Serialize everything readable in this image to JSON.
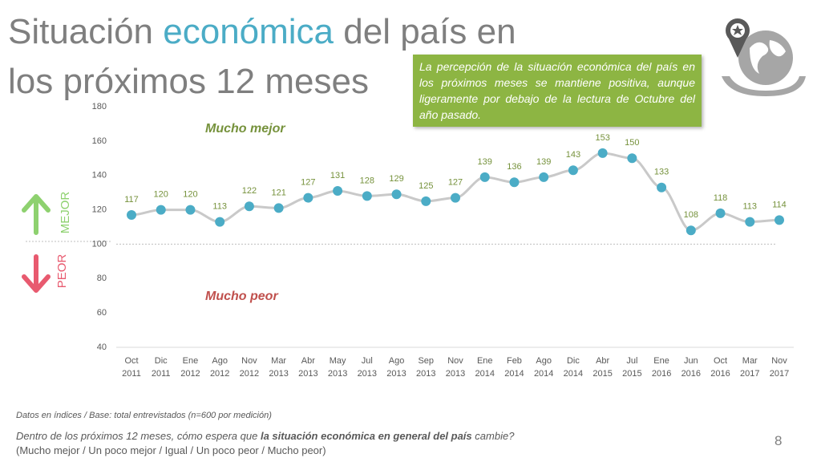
{
  "title": {
    "line1": [
      "Situación",
      "económica",
      "del país en"
    ],
    "line2": "los próximos 12 meses"
  },
  "callout": "La percepción de la situación económica del país en los próximos meses se mantiene positiva, aunque ligeramente por debajo de la lectura de Octubre del año pasado.",
  "chart_data": {
    "type": "line",
    "categories": [
      [
        "Oct",
        "2011"
      ],
      [
        "Dic",
        "2011"
      ],
      [
        "Ene",
        "2012"
      ],
      [
        "Ago",
        "2012"
      ],
      [
        "Nov",
        "2012"
      ],
      [
        "Mar",
        "2013"
      ],
      [
        "Abr",
        "2013"
      ],
      [
        "May",
        "2013"
      ],
      [
        "Jul",
        "2013"
      ],
      [
        "Ago",
        "2013"
      ],
      [
        "Sep",
        "2013"
      ],
      [
        "Nov",
        "2013"
      ],
      [
        "Ene",
        "2014"
      ],
      [
        "Feb",
        "2014"
      ],
      [
        "Ago",
        "2014"
      ],
      [
        "Dic",
        "2014"
      ],
      [
        "Abr",
        "2015"
      ],
      [
        "Jul",
        "2015"
      ],
      [
        "Ene",
        "2016"
      ],
      [
        "Jun",
        "2016"
      ],
      [
        "Oct",
        "2016"
      ],
      [
        "Mar",
        "2017"
      ],
      [
        "Nov",
        "2017"
      ]
    ],
    "values": [
      117,
      120,
      120,
      113,
      122,
      121,
      127,
      131,
      128,
      129,
      125,
      127,
      139,
      136,
      139,
      143,
      153,
      150,
      133,
      108,
      118,
      113,
      114
    ],
    "color": "#4bacc6",
    "line_color": "#c9c9c9",
    "label_color": "#76923c",
    "ylim": [
      40,
      180
    ],
    "yticks": [
      40,
      60,
      80,
      100,
      120,
      140,
      160,
      180
    ],
    "reference_line": 100,
    "annotations": {
      "upper": "Mucho mejor",
      "lower": "Mucho peor",
      "better": "MEJOR",
      "worse": "PEOR"
    }
  },
  "footnote": "Datos en índices / Base: total entrevistados (n=600 por medición)",
  "question": [
    "Dentro de los próximos 12 meses, cómo espera que",
    "la situación económica en general del país",
    "cambie?"
  ],
  "options": "(Mucho mejor / Un poco mejor / Igual / Un poco peor / Mucho peor)",
  "page_number": 8
}
